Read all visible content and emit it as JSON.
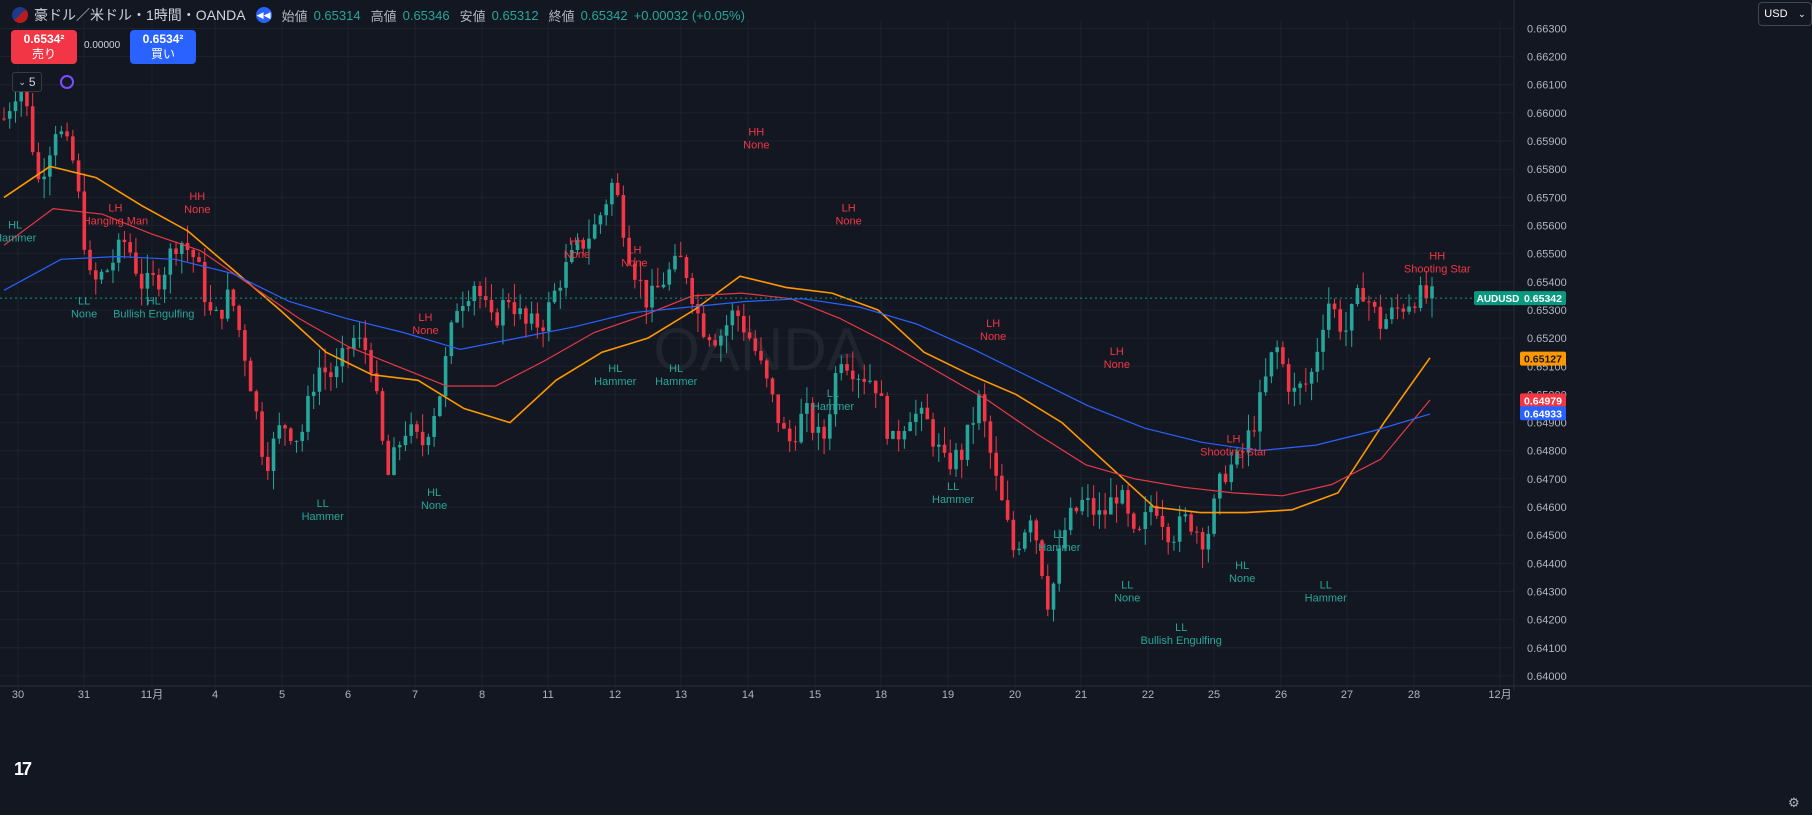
{
  "header": {
    "title": "豪ドル／米ドル・1時間・OANDA",
    "open_label": "始値",
    "open": "0.65314",
    "high_label": "高値",
    "high": "0.65346",
    "low_label": "安値",
    "low": "0.65312",
    "close_label": "終値",
    "close": "0.65342",
    "change": "+0.00032 (+0.05%)"
  },
  "trade": {
    "sell_price": "0.6534²",
    "sell_label": "売り",
    "spread": "0.00000",
    "buy_price": "0.6534²",
    "buy_label": "買い"
  },
  "indicator_count": "5",
  "currency": "USD",
  "colors": {
    "background": "#131722",
    "up": "#26a69a",
    "down": "#f23645",
    "ma_fast": "#ff9800",
    "ma_mid": "#e53945",
    "ma_slow": "#2962ff",
    "label_high": "#f23645",
    "label_low": "#26a69a"
  },
  "chart_data": {
    "type": "candlestick",
    "symbol": "AUDUSD",
    "timeframe": "1時間",
    "ylim": [
      0.6395,
      0.6633
    ],
    "y_ticks": [
      "0.66300",
      "0.66200",
      "0.66100",
      "0.66000",
      "0.65900",
      "0.65800",
      "0.65700",
      "0.65600",
      "0.65500",
      "0.65400",
      "0.65300",
      "0.65200",
      "0.65100",
      "0.65000",
      "0.64900",
      "0.64800",
      "0.64700",
      "0.64600",
      "0.64500",
      "0.64400",
      "0.64300",
      "0.64200",
      "0.64100",
      "0.64000"
    ],
    "x_ticks": [
      "30",
      "31",
      "11月",
      "4",
      "5",
      "6",
      "7",
      "8",
      "11",
      "12",
      "13",
      "14",
      "15",
      "18",
      "19",
      "20",
      "21",
      "22",
      "25",
      "26",
      "27",
      "28",
      "12月"
    ],
    "price_tags": [
      {
        "label": "AUDUSD",
        "value": "0.65342",
        "color": "#089981",
        "text": "#ffffff"
      },
      {
        "label": "",
        "value": "0.65127",
        "color": "#ff9800",
        "text": "#131722"
      },
      {
        "label": "",
        "value": "0.64979",
        "color": "#f23645",
        "text": "#ffffff"
      },
      {
        "label": "",
        "value": "0.64933",
        "color": "#2962ff",
        "text": "#ffffff"
      }
    ],
    "watermark": "OANDA",
    "close_path": [
      0.6598,
      0.6613,
      0.6575,
      0.6596,
      0.6582,
      0.6538,
      0.6545,
      0.6555,
      0.6538,
      0.6542,
      0.6556,
      0.6548,
      0.6525,
      0.6536,
      0.651,
      0.6475,
      0.649,
      0.6484,
      0.651,
      0.6506,
      0.652,
      0.6515,
      0.647,
      0.6488,
      0.6482,
      0.65,
      0.6532,
      0.654,
      0.6525,
      0.6535,
      0.6524,
      0.6526,
      0.6542,
      0.6552,
      0.656,
      0.6576,
      0.6548,
      0.6532,
      0.6542,
      0.6548,
      0.6525,
      0.652,
      0.653,
      0.6518,
      0.65,
      0.6482,
      0.6494,
      0.6482,
      0.6515,
      0.6508,
      0.6505,
      0.6482,
      0.6494,
      0.649,
      0.6475,
      0.6479,
      0.6498,
      0.6468,
      0.6444,
      0.6459,
      0.6425,
      0.6454,
      0.6462,
      0.6456,
      0.6466,
      0.6446,
      0.6463,
      0.645,
      0.6456,
      0.6448,
      0.6472,
      0.6477,
      0.6494,
      0.6518,
      0.65,
      0.6505,
      0.6534,
      0.6522,
      0.6538,
      0.6525,
      0.653,
      0.6535,
      0.6534
    ],
    "series": [
      {
        "name": "",
        "color": "#ff9800",
        "values": [
          0.657,
          0.6581,
          0.6577,
          0.6567,
          0.6558,
          0.6544,
          0.653,
          0.6515,
          0.6507,
          0.6505,
          0.6495,
          0.649,
          0.6505,
          0.6515,
          0.652,
          0.653,
          0.6542,
          0.6538,
          0.6536,
          0.653,
          0.6515,
          0.6507,
          0.65,
          0.649,
          0.6475,
          0.646,
          0.6458,
          0.6458,
          0.6459,
          0.6465,
          0.649,
          0.6513
        ]
      },
      {
        "name": "",
        "color": "#e53945",
        "values": [
          0.6553,
          0.6566,
          0.6564,
          0.6557,
          0.6551,
          0.6539,
          0.6527,
          0.6517,
          0.651,
          0.6503,
          0.6503,
          0.6512,
          0.6522,
          0.6528,
          0.6535,
          0.6536,
          0.6534,
          0.6527,
          0.6518,
          0.6508,
          0.6498,
          0.6486,
          0.6475,
          0.647,
          0.6467,
          0.6465,
          0.6464,
          0.6468,
          0.6477,
          0.6498
        ]
      },
      {
        "name": "",
        "color": "#2962ff",
        "values": [
          0.6537,
          0.6548,
          0.6549,
          0.6548,
          0.6543,
          0.6533,
          0.6527,
          0.6522,
          0.6516,
          0.652,
          0.6524,
          0.6529,
          0.6531,
          0.6533,
          0.6534,
          0.6531,
          0.6525,
          0.6516,
          0.6506,
          0.6496,
          0.6488,
          0.6483,
          0.648,
          0.6482,
          0.6487,
          0.6493
        ]
      }
    ],
    "annotations": [
      {
        "line1": "HL",
        "line2": "Hammer",
        "kind": "low",
        "at": 0.64,
        "price": 0.6559
      },
      {
        "line1": "LL",
        "line2": "None",
        "kind": "low",
        "at": 4.6,
        "price": 0.6532
      },
      {
        "line1": "LH",
        "line2": "Hanging Man",
        "kind": "high",
        "at": 6.4,
        "price": 0.6565
      },
      {
        "line1": "HL",
        "line2": "Bullish Engulfing",
        "kind": "low",
        "at": 8.6,
        "price": 0.6532
      },
      {
        "line1": "HH",
        "line2": "None",
        "kind": "high",
        "at": 11.1,
        "price": 0.6569
      },
      {
        "line1": "LL",
        "line2": "Hammer",
        "kind": "low",
        "at": 18.3,
        "price": 0.646
      },
      {
        "line1": "HL",
        "line2": "None",
        "kind": "low",
        "at": 24.7,
        "price": 0.6464
      },
      {
        "line1": "LH",
        "line2": "None",
        "kind": "high",
        "at": 24.2,
        "price": 0.6526
      },
      {
        "line1": "HH",
        "line2": "None",
        "kind": "high",
        "at": 32.9,
        "price": 0.6553
      },
      {
        "line1": "LH",
        "line2": "None",
        "kind": "high",
        "at": 36.2,
        "price": 0.655
      },
      {
        "line1": "HL",
        "line2": "Hammer",
        "kind": "low",
        "at": 35.1,
        "price": 0.6508
      },
      {
        "line1": "HL",
        "line2": "Hammer",
        "kind": "low",
        "at": 38.6,
        "price": 0.6508
      },
      {
        "line1": "HH",
        "line2": "None",
        "kind": "high",
        "at": 43.2,
        "price": 0.6592
      },
      {
        "line1": "LH",
        "line2": "None",
        "kind": "high",
        "at": 48.5,
        "price": 0.6565
      },
      {
        "line1": "LL",
        "line2": "Hammer",
        "kind": "low",
        "at": 47.6,
        "price": 0.6499
      },
      {
        "line1": "LL",
        "line2": "Hammer",
        "kind": "low",
        "at": 54.5,
        "price": 0.6466
      },
      {
        "line1": "LH",
        "line2": "None",
        "kind": "high",
        "at": 56.8,
        "price": 0.6524
      },
      {
        "line1": "LL",
        "line2": "Hammer",
        "kind": "low",
        "at": 60.6,
        "price": 0.6449
      },
      {
        "line1": "LH",
        "line2": "None",
        "kind": "high",
        "at": 63.9,
        "price": 0.6514
      },
      {
        "line1": "LL",
        "line2": "None",
        "kind": "low",
        "at": 64.5,
        "price": 0.6431
      },
      {
        "line1": "LL",
        "line2": "Bullish Engulfing",
        "kind": "low",
        "at": 67.6,
        "price": 0.6416
      },
      {
        "line1": "LH",
        "line2": "Shooting Star",
        "kind": "high",
        "at": 70.6,
        "price": 0.6483
      },
      {
        "line1": "HL",
        "line2": "None",
        "kind": "low",
        "at": 71.1,
        "price": 0.6438
      },
      {
        "line1": "LL",
        "line2": "Hammer",
        "kind": "low",
        "at": 75.9,
        "price": 0.6431
      },
      {
        "line1": "HH",
        "line2": "Shooting Star",
        "kind": "high",
        "at": 82.3,
        "price": 0.6548
      }
    ]
  }
}
